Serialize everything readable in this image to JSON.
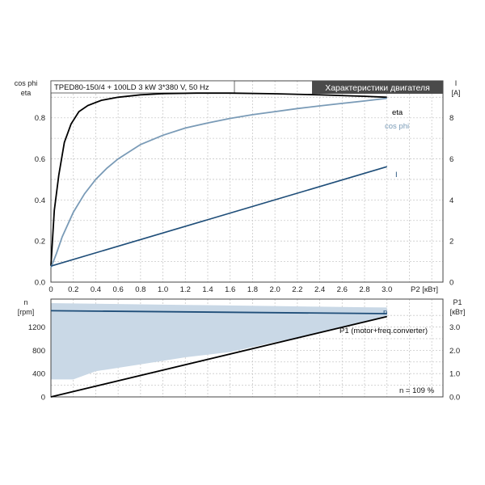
{
  "chart_data": [
    {
      "type": "line",
      "title": "TPED80-150/4 + 100LD  3 kW  3*380 V, 50 Hz",
      "badge": "Характеристики двигателя",
      "xlabel": "P2 [кВт]",
      "ylabel_left": [
        "cos phi",
        "eta"
      ],
      "ylabel_right": [
        "I",
        "[A]"
      ],
      "xlim": [
        0,
        3.5
      ],
      "ylim_left": [
        0,
        0.98
      ],
      "ylim_right": [
        0,
        9.8
      ],
      "x_ticks": [
        "0",
        "0.2",
        "0.4",
        "0.6",
        "0.8",
        "1.0",
        "1.2",
        "1.4",
        "1.6",
        "1.8",
        "2.0",
        "2.2",
        "2.4",
        "2.6",
        "2.8",
        "3.0"
      ],
      "x_tick_values": [
        0,
        0.2,
        0.4,
        0.6,
        0.8,
        1.0,
        1.2,
        1.4,
        1.6,
        1.8,
        2.0,
        2.2,
        2.4,
        2.6,
        2.8,
        3.0
      ],
      "y_left_ticks": [
        "0.0",
        "0.2",
        "0.4",
        "0.6",
        "0.8"
      ],
      "y_left_tick_values": [
        0,
        0.2,
        0.4,
        0.6,
        0.8
      ],
      "y_right_ticks": [
        "0",
        "2",
        "4",
        "6",
        "8"
      ],
      "y_right_tick_values": [
        0,
        2,
        4,
        6,
        8
      ],
      "grid": true,
      "series": [
        {
          "name": "eta",
          "axis": "left",
          "color": "#000000",
          "x": [
            0,
            0.03,
            0.07,
            0.12,
            0.18,
            0.25,
            0.33,
            0.45,
            0.6,
            0.8,
            1.0,
            1.3,
            1.6,
            2.0,
            2.4,
            2.8,
            3.0
          ],
          "y": [
            0.08,
            0.35,
            0.52,
            0.68,
            0.77,
            0.83,
            0.86,
            0.885,
            0.9,
            0.912,
            0.918,
            0.92,
            0.92,
            0.917,
            0.912,
            0.905,
            0.9
          ]
        },
        {
          "name": "cos phi",
          "axis": "left",
          "color": "#7a9bb7",
          "x": [
            0,
            0.05,
            0.1,
            0.2,
            0.3,
            0.4,
            0.5,
            0.6,
            0.8,
            1.0,
            1.2,
            1.4,
            1.6,
            1.8,
            2.0,
            2.2,
            2.4,
            2.6,
            2.8,
            3.0
          ],
          "y": [
            0.07,
            0.14,
            0.22,
            0.34,
            0.43,
            0.5,
            0.555,
            0.6,
            0.67,
            0.715,
            0.75,
            0.775,
            0.797,
            0.815,
            0.83,
            0.845,
            0.858,
            0.87,
            0.882,
            0.895
          ]
        },
        {
          "name": "I",
          "axis": "right",
          "color": "#1f4e79",
          "x": [
            0,
            3.0
          ],
          "y": [
            0.78,
            5.62
          ]
        }
      ]
    },
    {
      "type": "line",
      "ylabel_left": [
        "n",
        "[rpm]"
      ],
      "ylabel_right": [
        "P1",
        "[кВт]"
      ],
      "xlim": [
        0,
        3.5
      ],
      "ylim_left": [
        0,
        1680
      ],
      "ylim_right": [
        0,
        4.2
      ],
      "y_left_ticks": [
        "0",
        "400",
        "800",
        "1200"
      ],
      "y_left_tick_values": [
        0,
        400,
        800,
        1200
      ],
      "y_right_ticks": [
        "0.0",
        "1.0",
        "2.0",
        "3.0"
      ],
      "y_right_tick_values": [
        0,
        1.0,
        2.0,
        3.0
      ],
      "grid": true,
      "annotation": "n = 109 %",
      "band": {
        "color": "#c9d8e6",
        "x": [
          0,
          0.2,
          0.4,
          0.8,
          1.2,
          1.6,
          2.0,
          2.4,
          2.8,
          3.0
        ],
        "upper": [
          1610,
          1605,
          1600,
          1590,
          1580,
          1570,
          1560,
          1550,
          1540,
          1535
        ],
        "lower": [
          300,
          300,
          440,
          560,
          680,
          770,
          940,
          1100,
          1290,
          1390
        ]
      },
      "series": [
        {
          "name": "n",
          "axis": "left",
          "color": "#1f4e79",
          "x": [
            0,
            3.0
          ],
          "y": [
            1480,
            1430
          ]
        },
        {
          "name": "P1 (motor+freq.converter)",
          "axis": "right",
          "color": "#000000",
          "x": [
            0,
            3.0
          ],
          "y": [
            0.0,
            3.45
          ]
        }
      ]
    }
  ]
}
